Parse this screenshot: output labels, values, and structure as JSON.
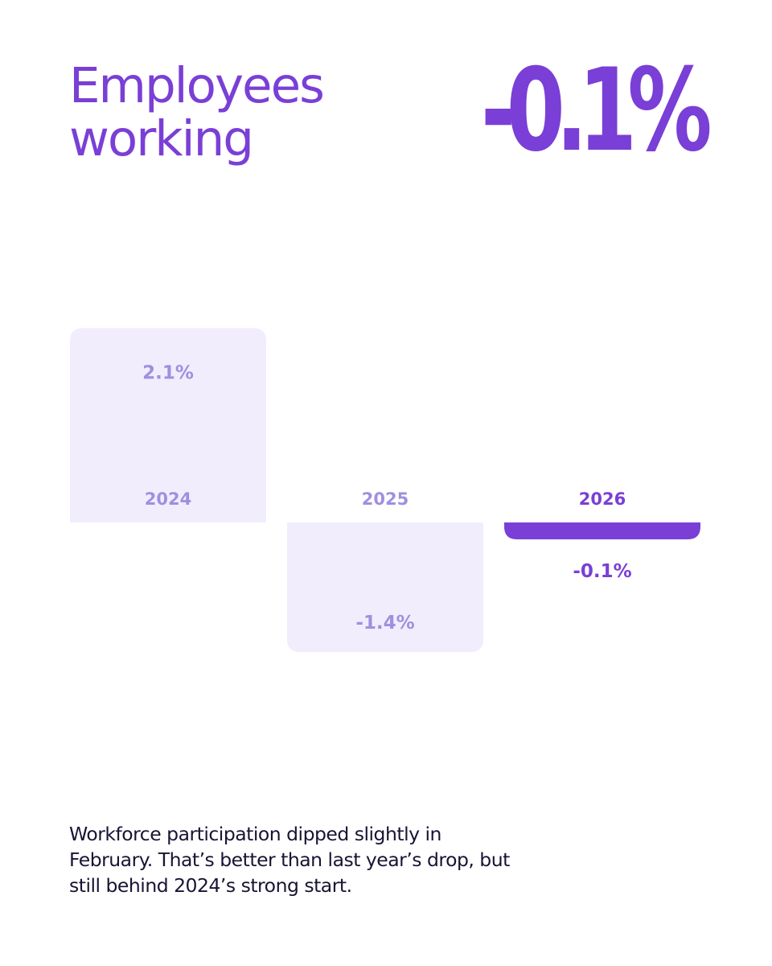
{
  "title_lines": [
    "Employees",
    "working"
  ],
  "headline_value": "-0.1%",
  "caption": "Workforce participation dipped slightly in February. That’s better than last year’s drop, but still behind 2024’s strong start.",
  "colors": {
    "accent": "#7a3fd6",
    "muted_fill": "#f1edfc",
    "muted_text": "#a08fe0",
    "body_text": "#1a1333",
    "background": "#ffffff"
  },
  "chart_data": {
    "type": "bar",
    "title": "Employees working",
    "xlabel": "",
    "ylabel": "",
    "ylim": [
      -1.4,
      2.1
    ],
    "categories": [
      "2024",
      "2025",
      "2026"
    ],
    "values": [
      2.1,
      -1.4,
      -0.1
    ],
    "value_labels": [
      "2.1%",
      "-1.4%",
      "-0.1%"
    ],
    "highlight_index": 2
  }
}
